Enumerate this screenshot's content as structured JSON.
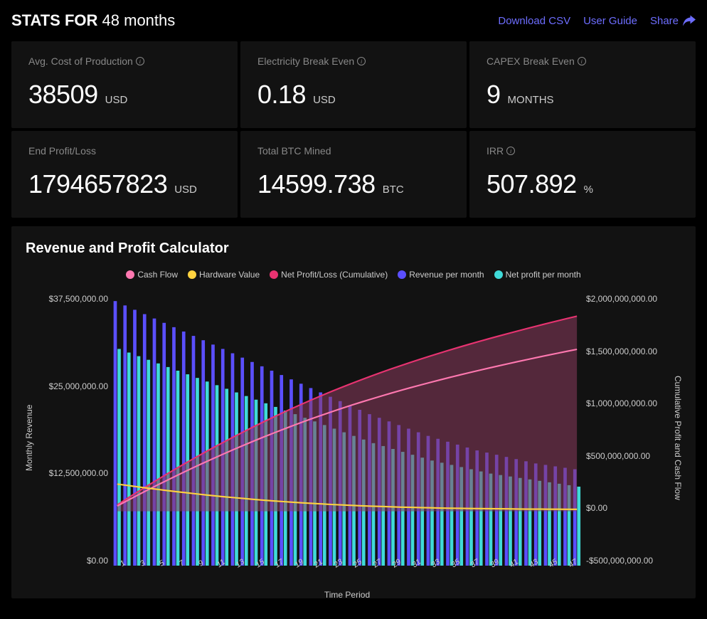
{
  "header": {
    "title_prefix": "STATS FOR",
    "duration": "48 months",
    "actions": {
      "download": "Download CSV",
      "guide": "User Guide",
      "share": "Share"
    }
  },
  "stats": [
    {
      "label": "Avg. Cost of Production",
      "value": "38509",
      "unit": "USD",
      "info": true
    },
    {
      "label": "Electricity Break Even",
      "value": "0.18",
      "unit": "USD",
      "info": true
    },
    {
      "label": "CAPEX Break Even",
      "value": "9",
      "unit": "MONTHS",
      "info": true
    },
    {
      "label": "End Profit/Loss",
      "value": "1794657823",
      "unit": "USD",
      "info": false
    },
    {
      "label": "Total BTC Mined",
      "value": "14599.738",
      "unit": "BTC",
      "info": false
    },
    {
      "label": "IRR",
      "value": "507.892",
      "unit": "%",
      "info": true
    }
  ],
  "chart": {
    "title": "Revenue and Profit Calculator",
    "legend": [
      {
        "label": "Cash Flow",
        "color": "#ff78b0"
      },
      {
        "label": "Hardware Value",
        "color": "#ffd23f"
      },
      {
        "label": "Net Profit/Loss (Cumulative)",
        "color": "#e83371"
      },
      {
        "label": "Revenue per month",
        "color": "#5b4fff"
      },
      {
        "label": "Net profit per month",
        "color": "#3fdad8"
      }
    ],
    "colors": {
      "bar_revenue": "#5b4fff",
      "bar_netprofit": "#3fdad8",
      "line_cashflow": "#ff78b0",
      "line_hardware": "#ffd23f",
      "line_cumulative": "#e83371",
      "area_cumulative": "#8a3a5d",
      "grid": "#2a2a2a",
      "bg": "#121212"
    },
    "x_label": "Time Period",
    "y_left_label": "Monthly Revenue",
    "y_right_label": "Cumulative Profit and Cash Flow",
    "y_left": {
      "min": 0,
      "max": 37500000,
      "ticks": [
        "$37,500,000.00",
        "$25,000,000.00",
        "$12,500,000.00",
        "$0.00"
      ]
    },
    "y_right": {
      "min": -500000000,
      "max": 2000000000,
      "ticks": [
        "$2,000,000,000.00",
        "$1,500,000,000.00",
        "$1,000,000,000.00",
        "$500,000,000.00",
        "$0.00",
        "-$500,000,000.00"
      ]
    },
    "x_ticks": [
      "1",
      "3",
      "5",
      "7",
      "9",
      "11",
      "13",
      "15",
      "17",
      "19",
      "21",
      "23",
      "25",
      "27",
      "29",
      "31",
      "33",
      "35",
      "37",
      "39",
      "41",
      "43",
      "45",
      "47"
    ],
    "n_periods": 48,
    "revenue_per_month": [
      36500000,
      35900000,
      35300000,
      34700000,
      34100000,
      33500000,
      32900000,
      32300000,
      31700000,
      31100000,
      30500000,
      29900000,
      29300000,
      28700000,
      28100000,
      27500000,
      26900000,
      26300000,
      25700000,
      25100000,
      24500000,
      23900000,
      23300000,
      22700000,
      22100000,
      21500000,
      20900000,
      20400000,
      19900000,
      19400000,
      18900000,
      18400000,
      17900000,
      17500000,
      17100000,
      16700000,
      16300000,
      15900000,
      15600000,
      15300000,
      15000000,
      14700000,
      14400000,
      14100000,
      13900000,
      13700000,
      13500000,
      13300000
    ],
    "net_profit_per_month": [
      29900000,
      29400000,
      28900000,
      28400000,
      27900000,
      27400000,
      26900000,
      26400000,
      25900000,
      25400000,
      24900000,
      24400000,
      23900000,
      23400000,
      22900000,
      22400000,
      21900000,
      21400000,
      20900000,
      20400000,
      19900000,
      19400000,
      18900000,
      18400000,
      17900000,
      17400000,
      16900000,
      16500000,
      16100000,
      15700000,
      15300000,
      14900000,
      14500000,
      14200000,
      13900000,
      13600000,
      13300000,
      13000000,
      12700000,
      12500000,
      12300000,
      12100000,
      11900000,
      11700000,
      11500000,
      11300000,
      11100000,
      10900000
    ],
    "cumulative_profit": [
      30000000,
      60000000,
      92000000,
      126000000,
      162000000,
      200000000,
      240000000,
      282000000,
      326000000,
      372000000,
      420000000,
      470000000,
      522000000,
      576000000,
      632000000,
      690000000,
      750000000,
      812000000,
      876000000,
      942000000,
      1010000000,
      1080000000,
      1152000000,
      1226000000,
      1302000000,
      1380000000,
      1460000000,
      1542000000,
      1626000000,
      1712000000,
      1800000000,
      1794657823,
      1794657823,
      1794657823,
      1794657823,
      1794657823,
      1794657823,
      1794657823,
      1794657823,
      1794657823,
      1794657823,
      1794657823,
      1794657823,
      1794657823,
      1794657823,
      1794657823,
      1794657823,
      1794657823
    ],
    "cash_flow": [
      0,
      35000000,
      72000000,
      110000000,
      150000000,
      192000000,
      235000000,
      280000000,
      326000000,
      374000000,
      423000000,
      474000000,
      526000000,
      580000000,
      635000000,
      692000000,
      750000000,
      810000000,
      871000000,
      934000000,
      998000000,
      1063000000,
      1130000000,
      1198000000,
      1267000000,
      1338000000,
      1410000000,
      1483000000,
      1500000000,
      1500000000,
      1500000000,
      1500000000,
      1500000000,
      1500000000,
      1500000000,
      1500000000,
      1500000000,
      1500000000,
      1500000000,
      1500000000,
      1500000000,
      1500000000,
      1500000000,
      1500000000,
      1500000000,
      1500000000,
      1500000000,
      1500000000
    ],
    "hardware_value": [
      250000000,
      238000000,
      226000000,
      214000000,
      203000000,
      192000000,
      181000000,
      171000000,
      161000000,
      151000000,
      142000000,
      133000000,
      125000000,
      117000000,
      109000000,
      102000000,
      95000000,
      89000000,
      83000000,
      77000000,
      72000000,
      67000000,
      62000000,
      58000000,
      54000000,
      50000000,
      47000000,
      44000000,
      41000000,
      38000000,
      36000000,
      34000000,
      32000000,
      30000000,
      28000000,
      27000000,
      26000000,
      25000000,
      24000000,
      23000000,
      22000000,
      21000000,
      20000000,
      20000000,
      19000000,
      19000000,
      18000000,
      18000000
    ]
  }
}
